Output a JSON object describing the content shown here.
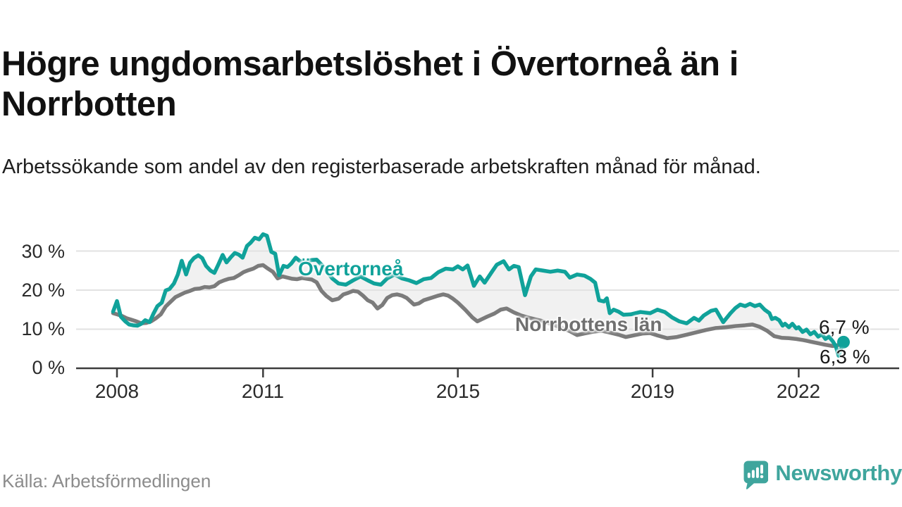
{
  "title": "Högre ungdomsarbetslöshet i Övertorneå än i Norrbotten",
  "subtitle": "Arbetssökande som andel av den registerbaserade arbetskraften månad för månad.",
  "source": "Källa: Arbetsförmedlingen",
  "brand": {
    "name": "Newsworthy",
    "color": "#3fa59d",
    "icon": "newsworthy-speech-bubble-bar-chart"
  },
  "chart_data": {
    "type": "line",
    "title": "Högre ungdomsarbetslöshet i Övertorneå än i Norrbotten",
    "xlabel": "",
    "ylabel": "",
    "unit": "%",
    "ylim": [
      0,
      36
    ],
    "x_range": [
      2007.92,
      2022.92
    ],
    "grid": "horizontal",
    "y_grid_values": [
      10,
      20,
      30
    ],
    "y_tick_labels": [
      "30 %",
      "20 %",
      "10 %",
      "0 %"
    ],
    "x_tick_years": [
      2008,
      2011,
      2015,
      2019,
      2022
    ],
    "x_tick_labels": [
      "2008",
      "2011",
      "2015",
      "2019",
      "2022"
    ],
    "between_fill": "#f1f1f1",
    "axis_color": "#3c3c3c",
    "grid_color": "#e2e2e2",
    "series": [
      {
        "name": "Övertorneå",
        "color": "#10a29a",
        "end_label": "6,7 %",
        "end_dot": true,
        "points": [
          [
            2007.92,
            14.5
          ],
          [
            2008.0,
            17.2
          ],
          [
            2008.08,
            13.2
          ],
          [
            2008.17,
            12.0
          ],
          [
            2008.25,
            11.2
          ],
          [
            2008.33,
            11.0
          ],
          [
            2008.42,
            10.9
          ],
          [
            2008.5,
            11.4
          ],
          [
            2008.58,
            12.3
          ],
          [
            2008.67,
            11.8
          ],
          [
            2008.75,
            14.0
          ],
          [
            2008.83,
            15.9
          ],
          [
            2008.92,
            16.8
          ],
          [
            2009.0,
            19.9
          ],
          [
            2009.08,
            20.3
          ],
          [
            2009.17,
            21.7
          ],
          [
            2009.25,
            24.0
          ],
          [
            2009.33,
            27.5
          ],
          [
            2009.42,
            24.0
          ],
          [
            2009.5,
            27.0
          ],
          [
            2009.58,
            28.2
          ],
          [
            2009.67,
            28.9
          ],
          [
            2009.75,
            28.2
          ],
          [
            2009.83,
            26.2
          ],
          [
            2009.92,
            25.0
          ],
          [
            2010.0,
            24.4
          ],
          [
            2010.08,
            26.5
          ],
          [
            2010.17,
            29.0
          ],
          [
            2010.25,
            27.1
          ],
          [
            2010.33,
            28.3
          ],
          [
            2010.42,
            29.5
          ],
          [
            2010.5,
            29.1
          ],
          [
            2010.58,
            28.3
          ],
          [
            2010.67,
            31.3
          ],
          [
            2010.75,
            32.2
          ],
          [
            2010.83,
            33.4
          ],
          [
            2010.92,
            33.0
          ],
          [
            2011.0,
            34.3
          ],
          [
            2011.08,
            33.9
          ],
          [
            2011.17,
            29.8
          ],
          [
            2011.25,
            29.3
          ],
          [
            2011.33,
            23.8
          ],
          [
            2011.42,
            26.2
          ],
          [
            2011.5,
            25.9
          ],
          [
            2011.58,
            26.8
          ],
          [
            2011.67,
            28.3
          ],
          [
            2011.75,
            27.5
          ],
          [
            2011.83,
            27.1
          ],
          [
            2011.92,
            27.4
          ],
          [
            2012.0,
            27.7
          ],
          [
            2012.1,
            27.8
          ],
          [
            2012.2,
            26.5
          ],
          [
            2012.3,
            25.0
          ],
          [
            2012.42,
            23.0
          ],
          [
            2012.55,
            21.7
          ],
          [
            2012.7,
            21.4
          ],
          [
            2012.85,
            22.5
          ],
          [
            2013.0,
            23.5
          ],
          [
            2013.15,
            22.5
          ],
          [
            2013.28,
            21.7
          ],
          [
            2013.42,
            21.4
          ],
          [
            2013.55,
            23.0
          ],
          [
            2013.7,
            24.0
          ],
          [
            2013.85,
            23.0
          ],
          [
            2014.0,
            22.5
          ],
          [
            2014.15,
            21.8
          ],
          [
            2014.3,
            22.8
          ],
          [
            2014.45,
            23.1
          ],
          [
            2014.6,
            24.6
          ],
          [
            2014.75,
            25.5
          ],
          [
            2014.9,
            25.3
          ],
          [
            2015.0,
            26.1
          ],
          [
            2015.1,
            25.3
          ],
          [
            2015.2,
            26.3
          ],
          [
            2015.33,
            21.1
          ],
          [
            2015.45,
            23.5
          ],
          [
            2015.55,
            21.9
          ],
          [
            2015.7,
            24.7
          ],
          [
            2015.8,
            26.5
          ],
          [
            2015.94,
            27.4
          ],
          [
            2016.05,
            25.3
          ],
          [
            2016.15,
            26.2
          ],
          [
            2016.25,
            25.9
          ],
          [
            2016.38,
            18.7
          ],
          [
            2016.5,
            23.5
          ],
          [
            2016.6,
            25.3
          ],
          [
            2016.75,
            25.0
          ],
          [
            2016.9,
            24.7
          ],
          [
            2017.05,
            25.0
          ],
          [
            2017.2,
            24.7
          ],
          [
            2017.3,
            23.2
          ],
          [
            2017.45,
            24.0
          ],
          [
            2017.6,
            23.7
          ],
          [
            2017.72,
            22.9
          ],
          [
            2017.82,
            21.9
          ],
          [
            2017.9,
            17.4
          ],
          [
            2018.0,
            17.1
          ],
          [
            2018.06,
            17.9
          ],
          [
            2018.12,
            14.1
          ],
          [
            2018.2,
            15.0
          ],
          [
            2018.3,
            14.5
          ],
          [
            2018.4,
            13.7
          ],
          [
            2018.55,
            13.8
          ],
          [
            2018.75,
            14.4
          ],
          [
            2018.95,
            14.1
          ],
          [
            2019.1,
            15.0
          ],
          [
            2019.25,
            14.4
          ],
          [
            2019.4,
            13.0
          ],
          [
            2019.55,
            12.0
          ],
          [
            2019.7,
            11.5
          ],
          [
            2019.85,
            12.9
          ],
          [
            2019.95,
            12.2
          ],
          [
            2020.05,
            13.5
          ],
          [
            2020.2,
            14.7
          ],
          [
            2020.3,
            15.0
          ],
          [
            2020.45,
            11.8
          ],
          [
            2020.6,
            14.1
          ],
          [
            2020.7,
            15.4
          ],
          [
            2020.8,
            16.3
          ],
          [
            2020.9,
            15.9
          ],
          [
            2021.0,
            16.5
          ],
          [
            2021.1,
            15.9
          ],
          [
            2021.2,
            16.3
          ],
          [
            2021.3,
            15.0
          ],
          [
            2021.4,
            14.1
          ],
          [
            2021.45,
            12.6
          ],
          [
            2021.52,
            12.9
          ],
          [
            2021.6,
            12.3
          ],
          [
            2021.67,
            10.9
          ],
          [
            2021.72,
            11.4
          ],
          [
            2021.8,
            10.5
          ],
          [
            2021.87,
            11.4
          ],
          [
            2021.95,
            10.2
          ],
          [
            2022.0,
            10.5
          ],
          [
            2022.08,
            9.3
          ],
          [
            2022.16,
            9.9
          ],
          [
            2022.24,
            8.7
          ],
          [
            2022.32,
            9.3
          ],
          [
            2022.4,
            8.1
          ],
          [
            2022.48,
            8.7
          ],
          [
            2022.55,
            7.5
          ],
          [
            2022.62,
            8.1
          ],
          [
            2022.7,
            6.9
          ],
          [
            2022.76,
            5.7
          ],
          [
            2022.82,
            3.2
          ],
          [
            2022.92,
            6.7
          ]
        ]
      },
      {
        "name": "Norrbottens län",
        "color": "#7b7b7b",
        "end_label": "6,3 %",
        "end_dot": false,
        "points": [
          [
            2007.92,
            14.1
          ],
          [
            2008.0,
            13.8
          ],
          [
            2008.1,
            13.4
          ],
          [
            2008.2,
            12.8
          ],
          [
            2008.3,
            12.4
          ],
          [
            2008.4,
            12.0
          ],
          [
            2008.5,
            11.5
          ],
          [
            2008.6,
            11.6
          ],
          [
            2008.7,
            12.0
          ],
          [
            2008.8,
            12.8
          ],
          [
            2008.9,
            13.8
          ],
          [
            2009.0,
            15.8
          ],
          [
            2009.1,
            17.0
          ],
          [
            2009.2,
            18.2
          ],
          [
            2009.3,
            18.8
          ],
          [
            2009.4,
            19.4
          ],
          [
            2009.5,
            19.8
          ],
          [
            2009.6,
            20.3
          ],
          [
            2009.7,
            20.4
          ],
          [
            2009.8,
            20.8
          ],
          [
            2009.9,
            20.7
          ],
          [
            2010.0,
            21.0
          ],
          [
            2010.1,
            22.0
          ],
          [
            2010.2,
            22.5
          ],
          [
            2010.3,
            22.9
          ],
          [
            2010.4,
            23.1
          ],
          [
            2010.5,
            23.8
          ],
          [
            2010.6,
            24.6
          ],
          [
            2010.7,
            25.1
          ],
          [
            2010.8,
            25.5
          ],
          [
            2010.9,
            26.2
          ],
          [
            2011.0,
            26.4
          ],
          [
            2011.1,
            25.5
          ],
          [
            2011.2,
            24.7
          ],
          [
            2011.3,
            23.0
          ],
          [
            2011.4,
            23.5
          ],
          [
            2011.5,
            23.2
          ],
          [
            2011.6,
            22.9
          ],
          [
            2011.7,
            22.8
          ],
          [
            2011.8,
            23.1
          ],
          [
            2011.9,
            22.9
          ],
          [
            2012.0,
            22.7
          ],
          [
            2012.1,
            22.0
          ],
          [
            2012.2,
            19.8
          ],
          [
            2012.3,
            18.5
          ],
          [
            2012.42,
            17.4
          ],
          [
            2012.55,
            17.8
          ],
          [
            2012.65,
            18.9
          ],
          [
            2012.75,
            19.3
          ],
          [
            2012.85,
            19.8
          ],
          [
            2012.95,
            19.6
          ],
          [
            2013.05,
            18.6
          ],
          [
            2013.15,
            17.4
          ],
          [
            2013.25,
            16.8
          ],
          [
            2013.35,
            15.3
          ],
          [
            2013.45,
            16.2
          ],
          [
            2013.55,
            18.0
          ],
          [
            2013.65,
            18.7
          ],
          [
            2013.75,
            18.9
          ],
          [
            2013.85,
            18.6
          ],
          [
            2013.95,
            18.0
          ],
          [
            2014.1,
            16.3
          ],
          [
            2014.2,
            16.6
          ],
          [
            2014.3,
            17.4
          ],
          [
            2014.45,
            18.0
          ],
          [
            2014.6,
            18.6
          ],
          [
            2014.7,
            18.9
          ],
          [
            2014.8,
            18.6
          ],
          [
            2014.9,
            17.8
          ],
          [
            2015.0,
            16.8
          ],
          [
            2015.15,
            15.0
          ],
          [
            2015.3,
            13.0
          ],
          [
            2015.4,
            12.0
          ],
          [
            2015.5,
            12.6
          ],
          [
            2015.6,
            13.2
          ],
          [
            2015.75,
            14.0
          ],
          [
            2015.88,
            15.0
          ],
          [
            2016.0,
            15.3
          ],
          [
            2016.15,
            14.3
          ],
          [
            2016.3,
            13.5
          ],
          [
            2016.5,
            12.8
          ],
          [
            2016.7,
            12.2
          ],
          [
            2016.9,
            11.4
          ],
          [
            2017.1,
            10.5
          ],
          [
            2017.3,
            9.5
          ],
          [
            2017.45,
            8.5
          ],
          [
            2017.6,
            8.9
          ],
          [
            2017.8,
            9.4
          ],
          [
            2017.95,
            9.6
          ],
          [
            2018.1,
            9.2
          ],
          [
            2018.3,
            8.6
          ],
          [
            2018.45,
            8.0
          ],
          [
            2018.6,
            8.4
          ],
          [
            2018.8,
            8.9
          ],
          [
            2018.95,
            9.0
          ],
          [
            2019.1,
            8.4
          ],
          [
            2019.3,
            7.7
          ],
          [
            2019.5,
            8.0
          ],
          [
            2019.7,
            8.6
          ],
          [
            2019.9,
            9.2
          ],
          [
            2020.1,
            9.8
          ],
          [
            2020.3,
            10.3
          ],
          [
            2020.5,
            10.5
          ],
          [
            2020.7,
            10.8
          ],
          [
            2020.9,
            11.0
          ],
          [
            2021.05,
            11.2
          ],
          [
            2021.2,
            10.6
          ],
          [
            2021.35,
            9.6
          ],
          [
            2021.5,
            8.2
          ],
          [
            2021.65,
            7.8
          ],
          [
            2021.8,
            7.7
          ],
          [
            2021.95,
            7.5
          ],
          [
            2022.1,
            7.2
          ],
          [
            2022.25,
            6.8
          ],
          [
            2022.4,
            6.4
          ],
          [
            2022.55,
            6.0
          ],
          [
            2022.7,
            5.7
          ],
          [
            2022.8,
            5.9
          ],
          [
            2022.92,
            6.3
          ]
        ]
      }
    ]
  }
}
